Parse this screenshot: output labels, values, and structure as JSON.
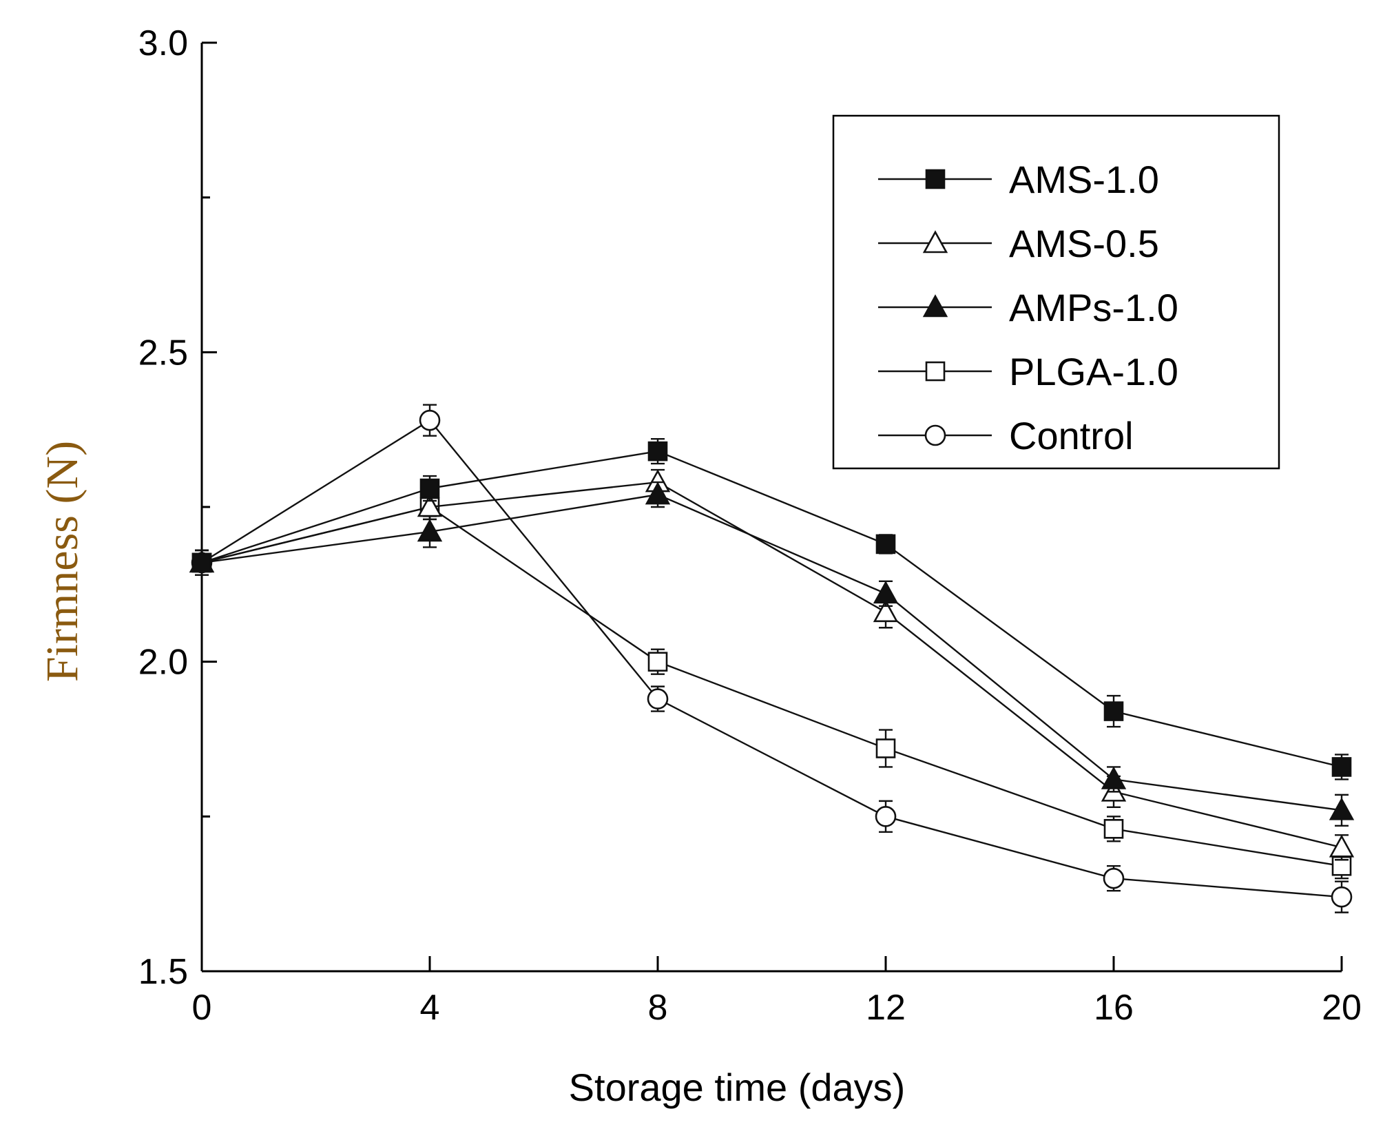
{
  "chart_data": {
    "type": "line",
    "title": "",
    "xlabel": "Storage time (days)",
    "ylabel": "Firmness (N)",
    "x": [
      0,
      4,
      8,
      12,
      16,
      20
    ],
    "xlim": [
      0,
      20
    ],
    "ylim": [
      1.5,
      3.0
    ],
    "xticks": [
      "0",
      "4",
      "8",
      "12",
      "16",
      "20"
    ],
    "yticks": [
      "1.5",
      "2.0",
      "2.5",
      "3.0"
    ],
    "grid": false,
    "legend_position": "top-right",
    "series": [
      {
        "name": "AMS-1.0",
        "marker": "square-filled",
        "values": [
          2.16,
          2.28,
          2.34,
          2.19,
          1.92,
          1.83
        ],
        "errors": [
          0.02,
          0.02,
          0.02,
          0.015,
          0.025,
          0.02
        ]
      },
      {
        "name": "AMS-0.5",
        "marker": "triangle-open",
        "values": [
          2.16,
          2.25,
          2.29,
          2.08,
          1.79,
          1.7
        ],
        "errors": [
          0.02,
          0.02,
          0.02,
          0.025,
          0.025,
          0.02
        ]
      },
      {
        "name": "AMPs-1.0",
        "marker": "triangle-filled",
        "values": [
          2.16,
          2.21,
          2.27,
          2.11,
          1.81,
          1.76
        ],
        "errors": [
          0.02,
          0.025,
          0.02,
          0.02,
          0.02,
          0.025
        ]
      },
      {
        "name": "PLGA-1.0",
        "marker": "square-open",
        "values": [
          2.16,
          2.25,
          2.0,
          1.86,
          1.73,
          1.67
        ],
        "errors": [
          0.02,
          0.02,
          0.02,
          0.03,
          0.02,
          0.02
        ]
      },
      {
        "name": "Control",
        "marker": "circle-open",
        "values": [
          2.16,
          2.39,
          1.94,
          1.75,
          1.65,
          1.62
        ],
        "errors": [
          0.02,
          0.025,
          0.02,
          0.025,
          0.02,
          0.025
        ]
      }
    ]
  }
}
